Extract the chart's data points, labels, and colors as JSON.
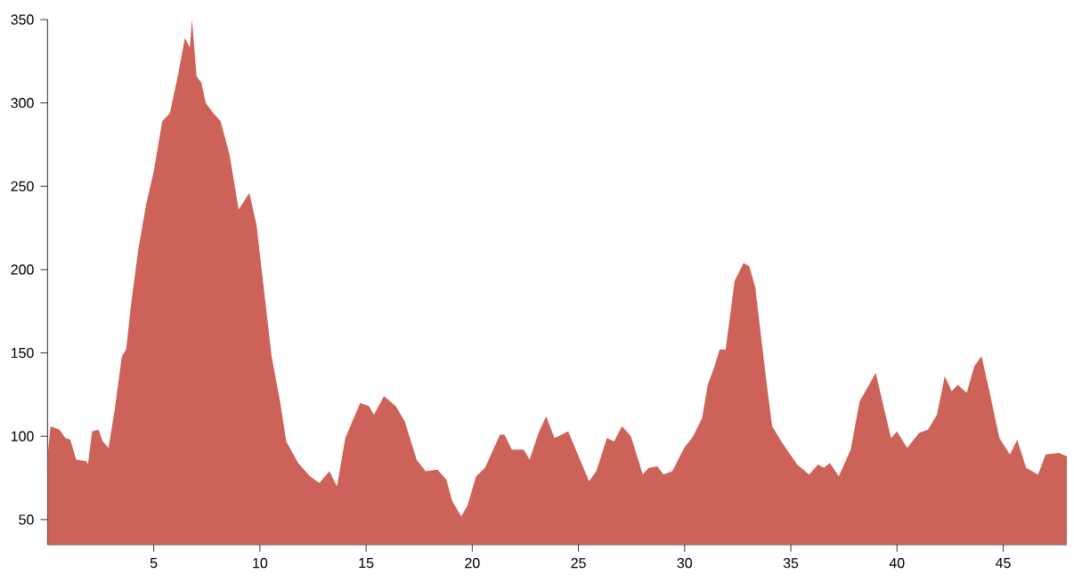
{
  "chart_data": {
    "type": "area",
    "color": "#cd6358",
    "xlim": [
      0,
      48
    ],
    "ylim": [
      35,
      350
    ],
    "xticks": [
      5,
      10,
      15,
      20,
      25,
      30,
      35,
      40,
      45
    ],
    "yticks": [
      50,
      100,
      150,
      200,
      250,
      300,
      350
    ],
    "x": [
      0,
      0.14,
      0.56,
      0.84,
      1.07,
      1.35,
      1.83,
      1.9,
      2.1,
      2.4,
      2.6,
      2.87,
      3.15,
      3.5,
      3.7,
      3.93,
      4.27,
      4.64,
      5.0,
      5.4,
      5.76,
      6.13,
      6.47,
      6.7,
      6.8,
      7.02,
      7.25,
      7.45,
      7.8,
      8.15,
      8.57,
      9.0,
      9.5,
      9.84,
      10.1,
      10.55,
      10.96,
      11.24,
      11.8,
      12.36,
      12.8,
      13.27,
      13.63,
      14.02,
      14.72,
      15.14,
      15.37,
      15.84,
      16.4,
      16.82,
      17.38,
      17.8,
      18.36,
      18.78,
      19.06,
      19.48,
      19.76,
      20.18,
      20.6,
      21.3,
      21.52,
      21.86,
      22.42,
      22.7,
      23.12,
      23.48,
      23.87,
      24.52,
      24.94,
      25.5,
      25.84,
      26.34,
      26.68,
      27.05,
      27.47,
      28.03,
      28.3,
      28.72,
      29.0,
      29.42,
      29.98,
      30.4,
      30.82,
      31.09,
      31.38,
      31.65,
      31.93,
      32.35,
      32.77,
      33.05,
      33.33,
      33.84,
      34.12,
      34.6,
      35.3,
      35.86,
      36.28,
      36.56,
      36.84,
      37.26,
      37.82,
      38.24,
      38.6,
      39.0,
      39.44,
      39.72,
      40.0,
      40.48,
      41.04,
      41.46,
      41.88,
      42.25,
      42.58,
      42.86,
      43.28,
      43.64,
      43.98,
      44.32,
      44.82,
      45.32,
      45.66,
      46.08,
      46.64,
      47.0,
      47.62,
      48
    ],
    "values": [
      88,
      106,
      104,
      99,
      98,
      86,
      85,
      83,
      103,
      104,
      97,
      93,
      115,
      148,
      152,
      179,
      212,
      239,
      259,
      289,
      294,
      316,
      339,
      333,
      350,
      316,
      312,
      300,
      294,
      289,
      269,
      236,
      246,
      227,
      198,
      148,
      120,
      97,
      84,
      76,
      72,
      79,
      70,
      99,
      120,
      118,
      113,
      124,
      118,
      109,
      86,
      79,
      80,
      74,
      61,
      52,
      58,
      76,
      81,
      101,
      101,
      92,
      92,
      86,
      102,
      112,
      99,
      103,
      90,
      73,
      79,
      99,
      97,
      106,
      100,
      77,
      81,
      82,
      77,
      79,
      93,
      100,
      111,
      131,
      141,
      152,
      152,
      193,
      204,
      202,
      189,
      134,
      106,
      96,
      83,
      77,
      83,
      81,
      84,
      76,
      92,
      121,
      129,
      138,
      114,
      99,
      103,
      93,
      102,
      104,
      113,
      136,
      127,
      131,
      126,
      142,
      148,
      129,
      99,
      89,
      98,
      81,
      77,
      89,
      90,
      88
    ]
  }
}
